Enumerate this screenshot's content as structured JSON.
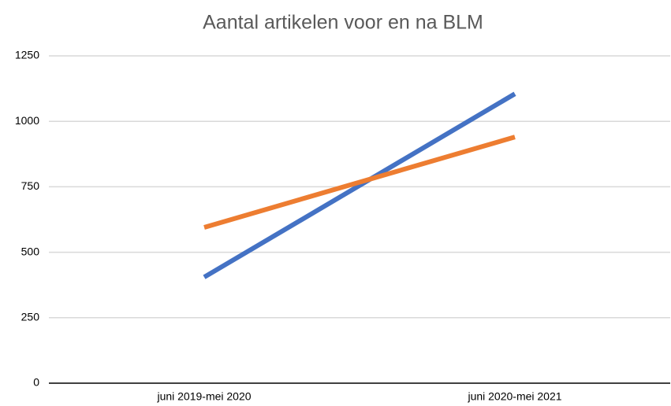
{
  "chart_data": {
    "type": "line",
    "title": "Aantal artikelen voor en na BLM",
    "categories": [
      "juni 2019-mei 2020",
      "juni 2020-mei 2021"
    ],
    "series": [
      {
        "color": "#4472c4",
        "values": [
          405,
          1105
        ]
      },
      {
        "color": "#ed7d31",
        "values": [
          595,
          940
        ]
      }
    ],
    "ylim": [
      0,
      1250
    ],
    "yticks": [
      0,
      250,
      500,
      750,
      1000,
      1250
    ],
    "grid": true
  }
}
